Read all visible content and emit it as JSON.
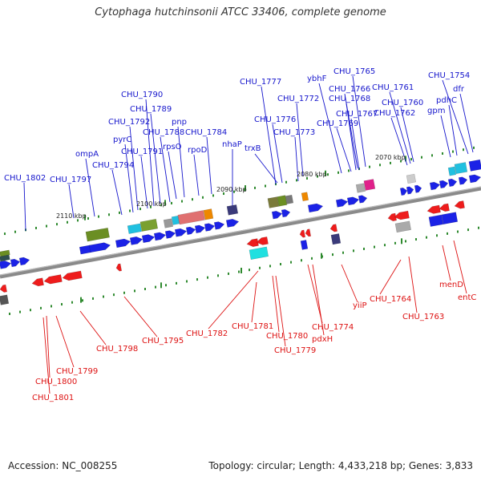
{
  "title": "Cytophaga hutchinsonii ATCC 33406, complete genome",
  "footer": {
    "accession": "Accession: NC_008255",
    "topology": "Topology: circular; Length: 4,433,218 bp; Genes: 3,833"
  },
  "colors": {
    "forward_label": "#1515cc",
    "reverse_label": "#dd1111",
    "forward_gene": "#1b22e6",
    "reverse_gene": "#ee1c1c",
    "backbone": "#888888",
    "tick": "#2f8a2f"
  },
  "kbp_marks": [
    "2110 kbp",
    "2100 kbp",
    "2090 kbp",
    "2080 kbp",
    "2070 kbp"
  ],
  "forward_labels": [
    "CHU_1802",
    "CHU_1797",
    "ompA",
    "CHU_1794",
    "pyrC",
    "CHU_1792",
    "CHU_1791",
    "CHU_1790",
    "CHU_1789",
    "CHU_1788",
    "rpsO",
    "pnp",
    "rpoD",
    "CHU_1784",
    "nhaP",
    "trxB",
    "CHU_1777",
    "CHU_1776",
    "CHU_1773",
    "CHU_1772",
    "ybhF",
    "CHU_1769",
    "CHU_1768",
    "CHU_1767",
    "CHU_1766",
    "CHU_1765",
    "CHU_1762",
    "CHU_1761",
    "CHU_1760",
    "gpm",
    "pdhC",
    "CHU_1754",
    "dfr"
  ],
  "reverse_labels": [
    "CHU_1801",
    "CHU_1800",
    "CHU_1799",
    "CHU_1798",
    "CHU_1795",
    "CHU_1782",
    "CHU_1781",
    "CHU_1780",
    "CHU_1779",
    "CHU_1774",
    "pdxH",
    "yiiP",
    "CHU_1764",
    "CHU_1763",
    "menD",
    "entC"
  ]
}
